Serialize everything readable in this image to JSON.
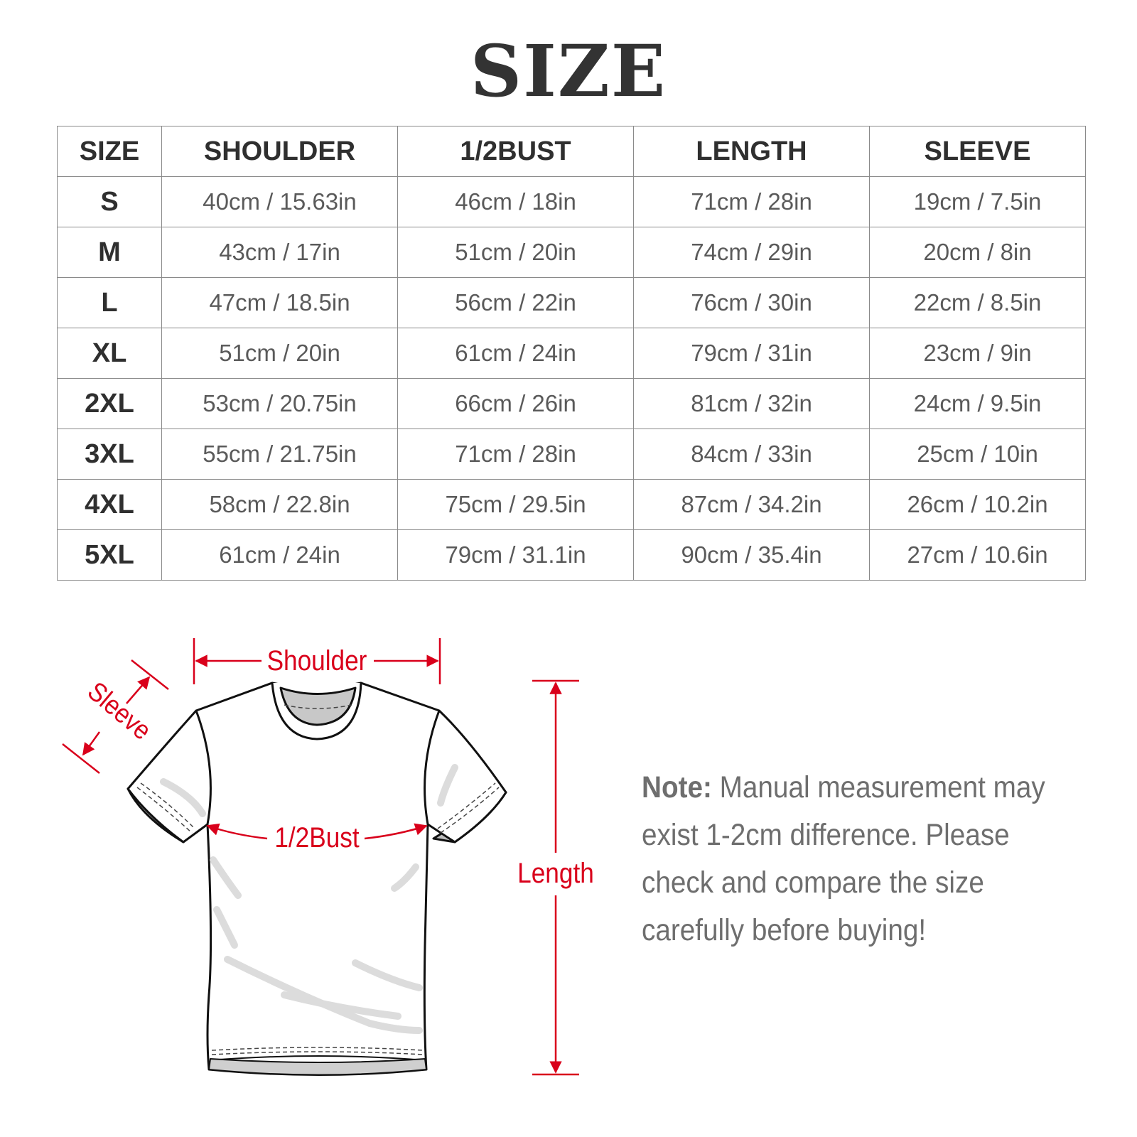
{
  "title": "SIZE",
  "table": {
    "headers": [
      "SIZE",
      "SHOULDER",
      "1/2BUST",
      "LENGTH",
      "SLEEVE"
    ],
    "rows": [
      [
        "S",
        "40cm / 15.63in",
        "46cm / 18in",
        "71cm / 28in",
        "19cm / 7.5in"
      ],
      [
        "M",
        "43cm / 17in",
        "51cm / 20in",
        "74cm / 29in",
        "20cm / 8in"
      ],
      [
        "L",
        "47cm / 18.5in",
        "56cm / 22in",
        "76cm / 30in",
        "22cm / 8.5in"
      ],
      [
        "XL",
        "51cm / 20in",
        "61cm / 24in",
        "79cm / 31in",
        "23cm / 9in"
      ],
      [
        "2XL",
        "53cm / 20.75in",
        "66cm / 26in",
        "81cm / 32in",
        "24cm / 9.5in"
      ],
      [
        "3XL",
        "55cm / 21.75in",
        "71cm / 28in",
        "84cm / 33in",
        "25cm / 10in"
      ],
      [
        "4XL",
        "58cm / 22.8in",
        "75cm / 29.5in",
        "87cm / 34.2in",
        "26cm / 10.2in"
      ],
      [
        "5XL",
        "61cm / 24in",
        "79cm / 31.1in",
        "90cm / 35.4in",
        "27cm / 10.6in"
      ]
    ]
  },
  "diagram": {
    "shoulder_label": "Shoulder",
    "sleeve_label": "Sleeve",
    "bust_label": "1/2Bust",
    "length_label": "Length",
    "accent_color": "#d9001b"
  },
  "note": {
    "label": "Note:",
    "text": " Manual measurement may exist 1-2cm difference. Please check and compare the size carefully before buying!"
  }
}
